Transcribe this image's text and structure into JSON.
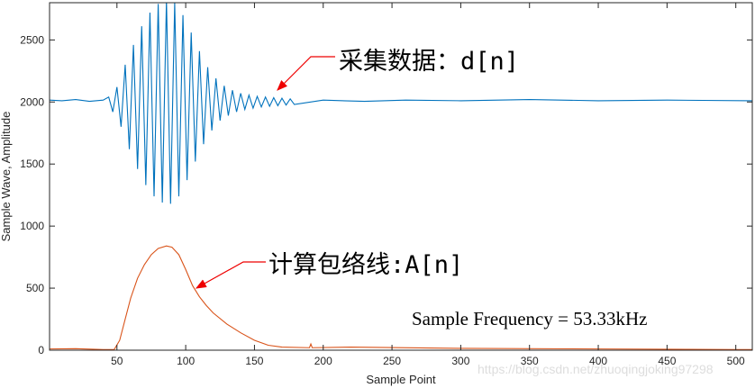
{
  "chart_data": {
    "type": "line",
    "xlabel": "Sample Point",
    "ylabel": "Sample Wave, Amplitude",
    "xlim": [
      1,
      512
    ],
    "ylim": [
      0,
      2800
    ],
    "xticks": [
      50,
      100,
      150,
      200,
      250,
      300,
      350,
      400,
      450,
      500
    ],
    "yticks": [
      0,
      500,
      1000,
      1500,
      2000,
      2500
    ],
    "annotations": [
      "采集数据：d[n]",
      "计算包络线:A[n]",
      "Sample Frequency = 53.33kHz"
    ],
    "watermark": "https://blog.csdn.net/zhuoqingjoking97298",
    "series": [
      {
        "name": "d[n]",
        "color": "#0072BD",
        "x": [
          1,
          10,
          20,
          30,
          40,
          44,
          47,
          50,
          53,
          56,
          59,
          62,
          65,
          68,
          71,
          74,
          77,
          80,
          83,
          86,
          89,
          92,
          95,
          98,
          101,
          104,
          107,
          110,
          113,
          116,
          119,
          122,
          125,
          128,
          131,
          134,
          137,
          140,
          143,
          146,
          149,
          152,
          155,
          158,
          161,
          164,
          167,
          170,
          173,
          176,
          179,
          200,
          230,
          260,
          300,
          350,
          400,
          450,
          512
        ],
        "values": [
          2015,
          2010,
          2020,
          2005,
          2015,
          2040,
          1920,
          2120,
          1800,
          2300,
          1620,
          2460,
          1460,
          2610,
          1330,
          2720,
          1240,
          2790,
          1190,
          2820,
          1180,
          2800,
          1240,
          2700,
          1370,
          2560,
          1520,
          2410,
          1660,
          2280,
          1770,
          2190,
          1850,
          2130,
          1890,
          2095,
          1920,
          2070,
          1940,
          2055,
          1950,
          2045,
          1960,
          2040,
          1965,
          2035,
          1970,
          2030,
          1975,
          2025,
          1980,
          2015,
          2005,
          2015,
          2010,
          2020,
          2010,
          2015,
          2010
        ]
      },
      {
        "name": "A[n]",
        "color": "#D95319",
        "x": [
          1,
          20,
          40,
          48,
          52,
          56,
          60,
          65,
          70,
          75,
          80,
          86,
          90,
          95,
          100,
          105,
          110,
          115,
          120,
          130,
          140,
          150,
          160,
          170,
          190,
          191,
          192,
          220,
          300,
          400,
          500,
          512
        ],
        "values": [
          10,
          12,
          5,
          5,
          80,
          250,
          420,
          580,
          690,
          770,
          820,
          840,
          830,
          770,
          650,
          520,
          430,
          360,
          300,
          210,
          140,
          80,
          40,
          25,
          20,
          50,
          20,
          25,
          15,
          10,
          5,
          5
        ]
      }
    ]
  }
}
